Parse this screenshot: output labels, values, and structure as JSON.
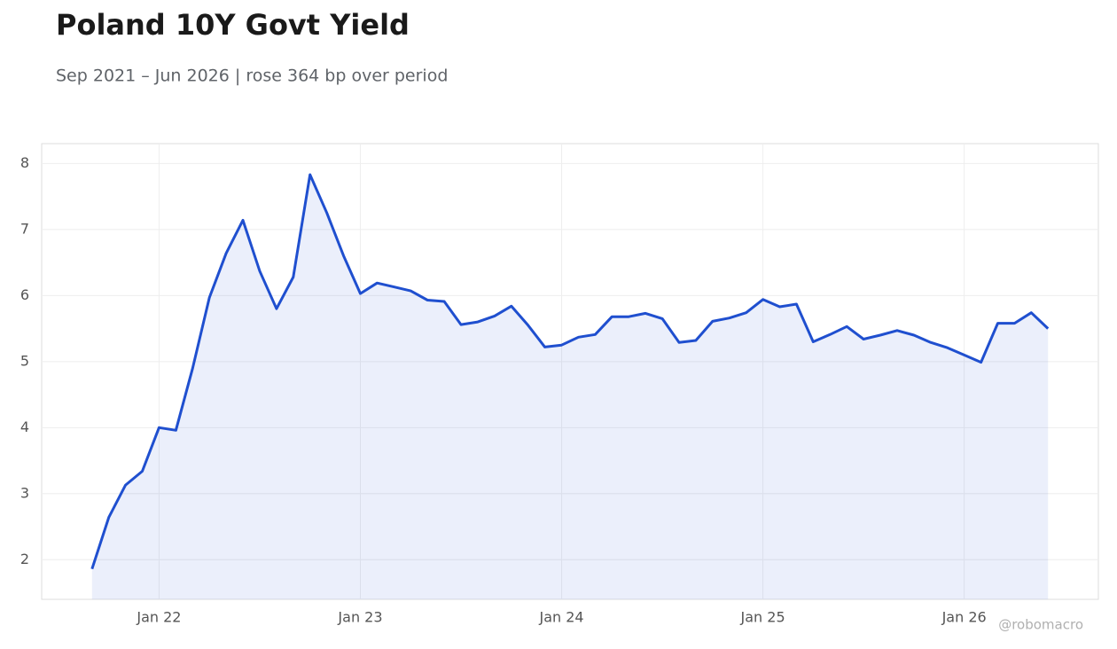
{
  "chart_data": {
    "type": "line",
    "title": "Poland 10Y Govt Yield",
    "subtitle": "Sep 2021 – Jun 2026 | rose 364 bp over period",
    "watermark": "@robomacro",
    "x": [
      "2021-09",
      "2021-10",
      "2021-11",
      "2021-12",
      "2022-01",
      "2022-02",
      "2022-03",
      "2022-04",
      "2022-05",
      "2022-06",
      "2022-07",
      "2022-08",
      "2022-09",
      "2022-10",
      "2022-11",
      "2022-12",
      "2023-01",
      "2023-02",
      "2023-03",
      "2023-04",
      "2023-05",
      "2023-06",
      "2023-07",
      "2023-08",
      "2023-09",
      "2023-10",
      "2023-11",
      "2023-12",
      "2024-01",
      "2024-02",
      "2024-03",
      "2024-04",
      "2024-05",
      "2024-06",
      "2024-07",
      "2024-08",
      "2024-09",
      "2024-10",
      "2024-11",
      "2024-12",
      "2025-01",
      "2025-02",
      "2025-03",
      "2025-04",
      "2025-05",
      "2025-06",
      "2025-07",
      "2025-08",
      "2025-09",
      "2025-10",
      "2025-11",
      "2025-12",
      "2026-01",
      "2026-02",
      "2026-03",
      "2026-04",
      "2026-05",
      "2026-06"
    ],
    "series": [
      {
        "name": "Poland 10Y",
        "color": "#1f4fcf",
        "values": [
          1.86,
          2.64,
          3.13,
          3.34,
          4.0,
          3.96,
          4.9,
          5.97,
          6.64,
          7.14,
          6.37,
          5.8,
          6.28,
          7.83,
          7.25,
          6.6,
          6.03,
          6.19,
          6.13,
          6.07,
          5.93,
          5.91,
          5.56,
          5.6,
          5.69,
          5.84,
          5.55,
          5.22,
          5.25,
          5.37,
          5.41,
          5.68,
          5.68,
          5.73,
          5.65,
          5.29,
          5.32,
          5.61,
          5.66,
          5.74,
          5.94,
          5.83,
          5.87,
          5.3,
          5.41,
          5.53,
          5.34,
          5.4,
          5.47,
          5.4,
          5.29,
          5.21,
          5.1,
          4.99,
          5.58,
          5.58,
          5.74,
          5.5
        ]
      }
    ],
    "xlim": [
      "2021-06",
      "2026-09"
    ],
    "xticks": [
      {
        "value": "2022-01",
        "label": "Jan 22"
      },
      {
        "value": "2023-01",
        "label": "Jan 23"
      },
      {
        "value": "2024-01",
        "label": "Jan 24"
      },
      {
        "value": "2025-01",
        "label": "Jan 25"
      },
      {
        "value": "2026-01",
        "label": "Jan 26"
      }
    ],
    "ylim": [
      1.4,
      8.3
    ],
    "yticks": [
      2,
      3,
      4,
      5,
      6,
      7,
      8
    ],
    "grid": true,
    "area_fill": true
  }
}
